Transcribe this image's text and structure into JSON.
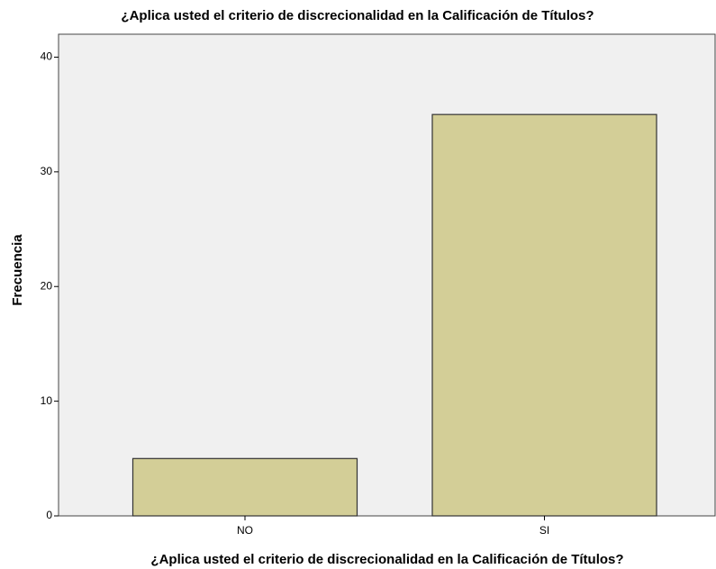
{
  "chart_data": {
    "type": "bar",
    "title": "¿Aplica usted el criterio de discrecionalidad en la Calificación de Títulos?",
    "x_label": "¿Aplica usted el criterio de discrecionalidad en la Calificación de Títulos?",
    "y_label": "Frecuencia",
    "categories": [
      "NO",
      "SI"
    ],
    "values": [
      5,
      35
    ],
    "color": "#d3ce97",
    "ylim": [
      0,
      42
    ],
    "yticks": [
      0,
      10,
      20,
      30,
      40
    ],
    "grid": false
  }
}
